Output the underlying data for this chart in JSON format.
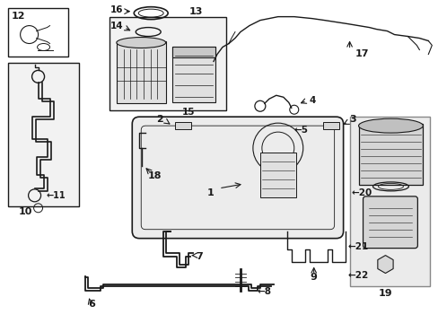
{
  "bg_color": "#ffffff",
  "line_color": "#1a1a1a",
  "gray_fill": "#e8e8e8",
  "light_fill": "#f2f2f2"
}
